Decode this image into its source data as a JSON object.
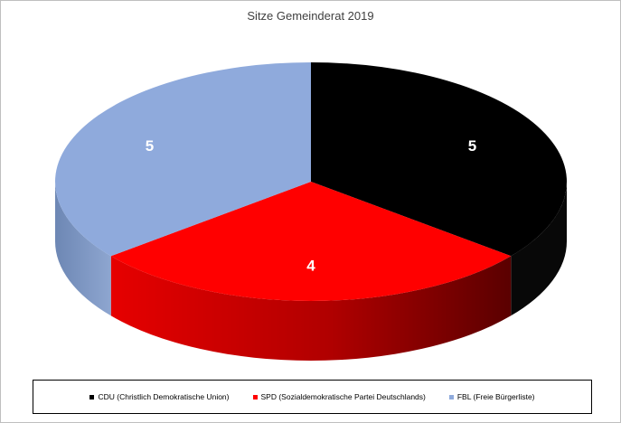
{
  "chart_data": {
    "type": "pie",
    "title": "Sitze Gemeinderat 2019",
    "slices": [
      {
        "label": "CDU (Christlich Demokratische Union)",
        "value": 5,
        "data_label": "5",
        "color": "#000000",
        "side_color": "#080808"
      },
      {
        "label": "SPD (Sozialdemokratische Partei Deutschlands)",
        "value": 4,
        "data_label": "4",
        "color": "#ff0000",
        "side_color": "#cc0000"
      },
      {
        "label": "FBL (Freie Bürgerliste)",
        "value": 5,
        "data_label": "5",
        "color": "#8faadc",
        "side_color": "#7a93c0"
      }
    ],
    "style": "3d",
    "legend_position": "bottom",
    "data_label_color": "#ffffff"
  }
}
